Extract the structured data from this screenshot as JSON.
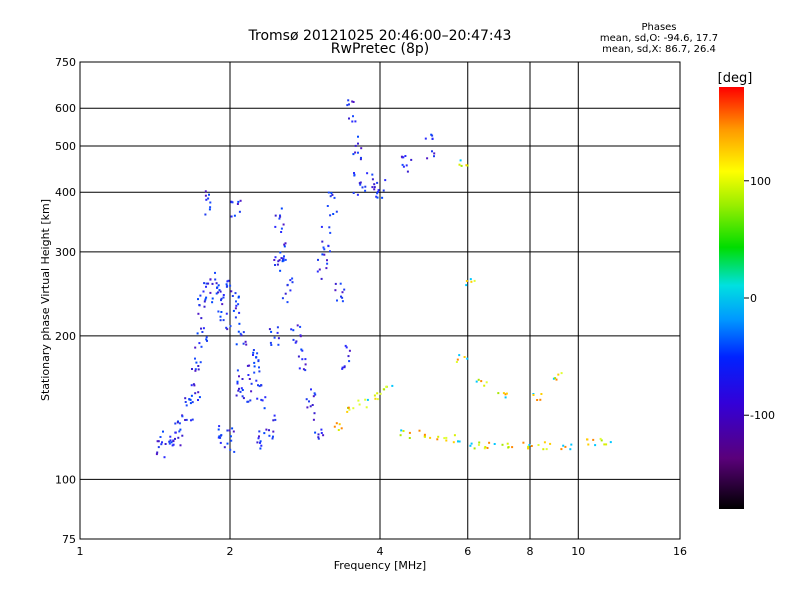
{
  "chart_data": {
    "type": "scatter",
    "title": "Tromsø 20121025 20:46:00–20:47:43",
    "subtitle": "RwPretec (8p)",
    "xlabel": "Frequency [MHz]",
    "ylabel": "Stationary phase Virtual Height [km]",
    "x_scale": "log",
    "y_scale": "log",
    "xlim": [
      1,
      16
    ],
    "ylim": [
      75,
      750
    ],
    "x_ticks": [
      "1",
      "2",
      "4",
      "6",
      "8",
      "10",
      "16"
    ],
    "y_ticks": [
      "75",
      "100",
      "200",
      "300",
      "400",
      "500",
      "600",
      "750"
    ],
    "grid": true,
    "colorbar": {
      "label": "[deg]",
      "range": [
        -180,
        180
      ],
      "colormap": "rainbow (black-purple-blue-cyan-green-yellow-red)",
      "ticks": [
        "100",
        "0",
        "-100"
      ],
      "tick_values": [
        100,
        0,
        -100
      ]
    },
    "phase_stats": {
      "heading": "Phases",
      "line_o": "mean, sd,O: -94.6, 17.7",
      "line_x": "mean, sd,X: 86.7, 26.4"
    },
    "series": [
      {
        "name": "O",
        "note": "dense blue traces (phase ≈ -95)",
        "points": [
          [
            1.45,
            120
          ],
          [
            1.5,
            118
          ],
          [
            1.55,
            125
          ],
          [
            1.6,
            130
          ],
          [
            1.65,
            140
          ],
          [
            1.7,
            150
          ],
          [
            1.7,
            180
          ],
          [
            1.75,
            200
          ],
          [
            1.75,
            230
          ],
          [
            1.8,
            250
          ],
          [
            1.85,
            260
          ],
          [
            1.9,
            240
          ],
          [
            1.95,
            220
          ],
          [
            2.0,
            250
          ],
          [
            2.05,
            230
          ],
          [
            2.1,
            200
          ],
          [
            2.1,
            160
          ],
          [
            2.15,
            150
          ],
          [
            2.2,
            170
          ],
          [
            2.25,
            180
          ],
          [
            2.3,
            150
          ],
          [
            2.4,
            130
          ],
          [
            2.45,
            200
          ],
          [
            2.5,
            280
          ],
          [
            2.5,
            350
          ],
          [
            2.55,
            300
          ],
          [
            2.6,
            250
          ],
          [
            2.7,
            200
          ],
          [
            2.8,
            180
          ],
          [
            2.9,
            150
          ],
          [
            3.0,
            130
          ],
          [
            3.05,
            280
          ],
          [
            3.1,
            320
          ],
          [
            3.2,
            380
          ],
          [
            3.3,
            250
          ],
          [
            3.4,
            180
          ],
          [
            3.5,
            600
          ],
          [
            3.6,
            420
          ],
          [
            3.6,
            500
          ],
          [
            3.8,
            420
          ],
          [
            4.0,
            410
          ],
          [
            4.5,
            450
          ],
          [
            5.0,
            500
          ],
          [
            1.8,
            380
          ],
          [
            2.05,
            380
          ],
          [
            2.3,
            120
          ],
          [
            2.0,
            122
          ],
          [
            1.9,
            124
          ]
        ]
      },
      {
        "name": "X",
        "note": "yellow-green traces (phase ≈ 87)",
        "points": [
          [
            3.3,
            130
          ],
          [
            3.5,
            140
          ],
          [
            3.7,
            145
          ],
          [
            3.9,
            150
          ],
          [
            4.1,
            155
          ],
          [
            4.5,
            125
          ],
          [
            4.9,
            125
          ],
          [
            5.3,
            123
          ],
          [
            5.7,
            122
          ],
          [
            6.2,
            118
          ],
          [
            6.6,
            118
          ],
          [
            7.2,
            118
          ],
          [
            7.9,
            118
          ],
          [
            8.5,
            118
          ],
          [
            9.4,
            118
          ],
          [
            10.5,
            120
          ],
          [
            11.3,
            121
          ],
          [
            5.8,
            180
          ],
          [
            6.4,
            160
          ],
          [
            7.0,
            150
          ],
          [
            9.0,
            165
          ],
          [
            8.3,
            150
          ],
          [
            5.9,
            460
          ],
          [
            6.0,
            260
          ]
        ]
      }
    ]
  }
}
